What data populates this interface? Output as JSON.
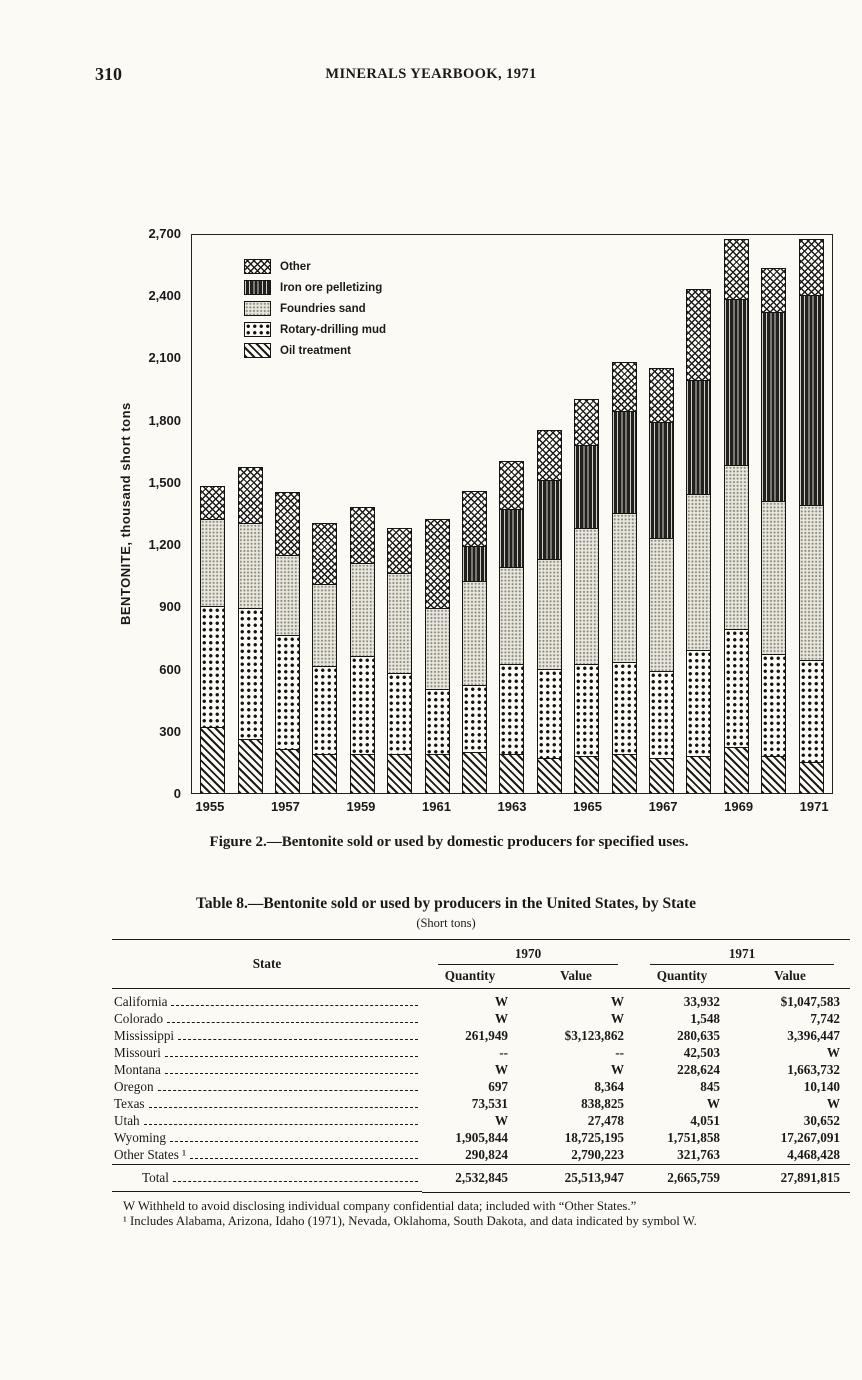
{
  "page": {
    "number": "310",
    "title": "MINERALS YEARBOOK, 1971"
  },
  "figure": {
    "caption": "Figure 2.—Bentonite sold or used by domestic producers for specified uses."
  },
  "chart_data": {
    "type": "bar",
    "stacked": true,
    "ylabel": "BENTONITE, thousand short tons",
    "ylim": [
      0,
      2700
    ],
    "yticks": [
      0,
      300,
      600,
      900,
      1200,
      1500,
      1800,
      2100,
      2400,
      2700
    ],
    "ytick_labels": [
      "0",
      "300",
      "600",
      "900",
      "1,200",
      "1,500",
      "1,800",
      "2,100",
      "2,400",
      "2,700"
    ],
    "categories": [
      1955,
      1956,
      1957,
      1958,
      1959,
      1960,
      1961,
      1962,
      1963,
      1964,
      1965,
      1966,
      1967,
      1968,
      1969,
      1970,
      1971
    ],
    "xtick_labels_shown": [
      "1955",
      "1957",
      "1959",
      "1961",
      "1963",
      "1965",
      "1967",
      "1969",
      "1971"
    ],
    "grid": false,
    "legend_position": "upper-left-inside",
    "series": [
      {
        "name": "Oil treatment",
        "pattern": "diagonal",
        "values": [
          320,
          260,
          210,
          190,
          190,
          190,
          190,
          200,
          190,
          170,
          180,
          190,
          170,
          180,
          220,
          180,
          150
        ]
      },
      {
        "name": "Rotary-drilling mud",
        "pattern": "dots",
        "values": [
          580,
          630,
          550,
          420,
          470,
          390,
          310,
          320,
          430,
          430,
          440,
          440,
          420,
          510,
          570,
          490,
          490
        ]
      },
      {
        "name": "Foundries sand",
        "pattern": "stipple",
        "values": [
          420,
          410,
          390,
          400,
          450,
          480,
          390,
          500,
          470,
          530,
          660,
          720,
          640,
          750,
          790,
          740,
          750
        ]
      },
      {
        "name": "Iron ore pelletizing",
        "pattern": "darkstripe",
        "values": [
          0,
          0,
          0,
          0,
          0,
          0,
          0,
          170,
          280,
          380,
          400,
          490,
          560,
          550,
          800,
          910,
          1010
        ]
      },
      {
        "name": "Other",
        "pattern": "crosshatch",
        "values": [
          160,
          270,
          300,
          290,
          270,
          220,
          430,
          265,
          230,
          240,
          220,
          240,
          260,
          440,
          290,
          210,
          270
        ]
      }
    ],
    "legend": [
      {
        "label": "Other",
        "pattern": "crosshatch"
      },
      {
        "label": "Iron ore pelletizing",
        "pattern": "darkstripe"
      },
      {
        "label": "Foundries sand",
        "pattern": "stipple"
      },
      {
        "label": "Rotary-drilling mud",
        "pattern": "dots"
      },
      {
        "label": "Oil treatment",
        "pattern": "diagonal"
      }
    ]
  },
  "table": {
    "title": "Table 8.—Bentonite sold or used by producers in the United States, by State",
    "subtitle": "(Short tons)",
    "state_header": "State",
    "col_groups": [
      "1970",
      "1971"
    ],
    "sub_headers": [
      "Quantity",
      "Value",
      "Quantity",
      "Value"
    ],
    "rows": [
      {
        "state": "California",
        "q70": "W",
        "v70": "W",
        "q71": "33,932",
        "v71": "$1,047,583"
      },
      {
        "state": "Colorado",
        "q70": "W",
        "v70": "W",
        "q71": "1,548",
        "v71": "7,742"
      },
      {
        "state": "Mississippi",
        "q70": "261,949",
        "v70": "$3,123,862",
        "q71": "280,635",
        "v71": "3,396,447"
      },
      {
        "state": "Missouri",
        "q70": "--",
        "v70": "--",
        "q71": "42,503",
        "v71": "W"
      },
      {
        "state": "Montana",
        "q70": "W",
        "v70": "W",
        "q71": "228,624",
        "v71": "1,663,732"
      },
      {
        "state": "Oregon",
        "q70": "697",
        "v70": "8,364",
        "q71": "845",
        "v71": "10,140"
      },
      {
        "state": "Texas",
        "q70": "73,531",
        "v70": "838,825",
        "q71": "W",
        "v71": "W"
      },
      {
        "state": "Utah",
        "q70": "W",
        "v70": "27,478",
        "q71": "4,051",
        "v71": "30,652"
      },
      {
        "state": "Wyoming",
        "q70": "1,905,844",
        "v70": "18,725,195",
        "q71": "1,751,858",
        "v71": "17,267,091"
      },
      {
        "state": "Other States ¹",
        "q70": "290,824",
        "v70": "2,790,223",
        "q71": "321,763",
        "v71": "4,468,428"
      }
    ],
    "total": {
      "state": "Total",
      "q70": "2,532,845",
      "v70": "25,513,947",
      "q71": "2,665,759",
      "v71": "27,891,815"
    },
    "footnotes": [
      "W Withheld to avoid disclosing individual company confidential data; included with “Other States.”",
      "¹ Includes Alabama, Arizona, Idaho (1971), Nevada, Oklahoma, South Dakota, and data indicated by symbol W."
    ]
  }
}
